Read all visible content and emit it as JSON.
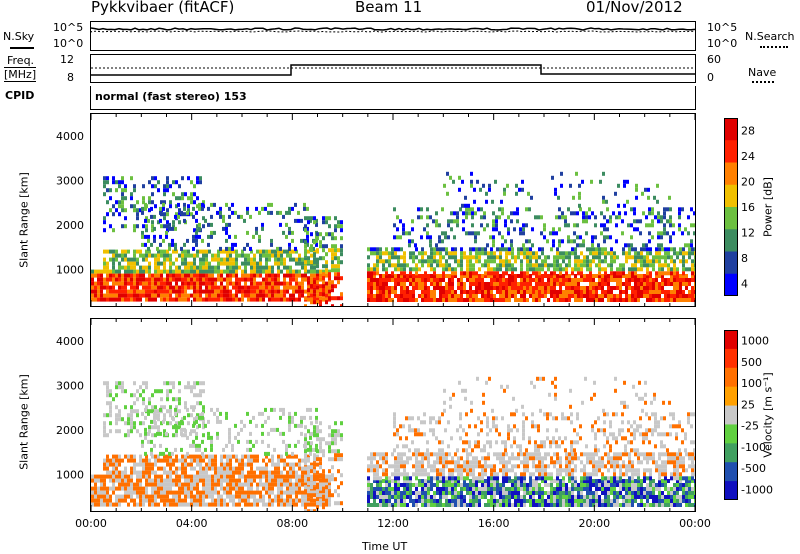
{
  "header": {
    "station": "Pykkvibaer (fitACF)",
    "beam": "Beam 11",
    "date": "01/Nov/2012"
  },
  "sky_panel": {
    "left_label": "N.Sky",
    "left_ticks": [
      "10^5",
      "10^0"
    ],
    "right_ticks": [
      "10^5",
      "10^0"
    ],
    "right_label": "N.Search"
  },
  "freq_panel": {
    "left_label_1": "Freq.",
    "left_label_2": "[MHz]",
    "left_ticks": [
      "12",
      "8"
    ],
    "right_ticks": [
      "60",
      "0"
    ],
    "right_label": "Nave"
  },
  "cpid": {
    "label": "CPID",
    "text": "normal (fast stereo) 153"
  },
  "x_axis": {
    "ticks": [
      "00:00",
      "04:00",
      "08:00",
      "12:00",
      "16:00",
      "20:00",
      "00:00"
    ],
    "label": "Time UT"
  },
  "chart_data": [
    {
      "type": "heatmap",
      "name": "power",
      "ylabel": "Slant Range [km]",
      "yticks": [
        "1000",
        "2000",
        "3000",
        "4000"
      ],
      "ylim": [
        180,
        4500
      ],
      "xlim": [
        0,
        24
      ],
      "colorbar_label": "Power [dB]",
      "colorbar_ticks": [
        "4",
        "8",
        "12",
        "16",
        "20",
        "24",
        "28"
      ],
      "colors": [
        "#0000ff",
        "#2040a0",
        "#3c8c60",
        "#6cc040",
        "#f0c000",
        "#ff8000",
        "#ff2000",
        "#e00000"
      ]
    },
    {
      "type": "heatmap",
      "name": "velocity",
      "ylabel": "Slant Range [km]",
      "yticks": [
        "1000",
        "2000",
        "3000",
        "4000"
      ],
      "ylim": [
        180,
        4500
      ],
      "xlim": [
        0,
        24
      ],
      "colorbar_label": "Velocity [m s⁻¹]",
      "colorbar_ticks": [
        "1000",
        "500",
        "100",
        "25",
        "-25",
        "-100",
        "-500",
        "-1000"
      ],
      "colors": [
        "#1010c0",
        "#2050b0",
        "#40a060",
        "#60d040",
        "#c8c8c8",
        "#ffa000",
        "#ff7000",
        "#ff3000",
        "#e00000"
      ]
    }
  ]
}
